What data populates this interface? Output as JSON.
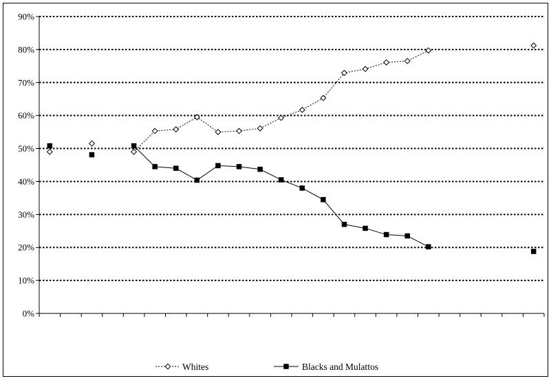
{
  "chart_data": {
    "type": "line",
    "title": "",
    "xlabel": "",
    "ylabel": "",
    "ylim": [
      0,
      90
    ],
    "y_ticks": [
      "0%",
      "10%",
      "20%",
      "30%",
      "40%",
      "50%",
      "60%",
      "70%",
      "80%",
      "90%"
    ],
    "grid": true,
    "legend_position": "bottom",
    "x_slots": 24,
    "series": [
      {
        "name": "Whites",
        "style": "dotted line with open diamond markers",
        "color": "#000000",
        "points": [
          {
            "slot": 0,
            "y": 49.0
          },
          {
            "slot": 2,
            "y": 51.5
          },
          {
            "slot": 4,
            "y": 49.0
          },
          {
            "slot": 5,
            "y": 55.3
          },
          {
            "slot": 6,
            "y": 55.8
          },
          {
            "slot": 7,
            "y": 59.5
          },
          {
            "slot": 8,
            "y": 55.0
          },
          {
            "slot": 9,
            "y": 55.3
          },
          {
            "slot": 10,
            "y": 56.1
          },
          {
            "slot": 11,
            "y": 59.3
          },
          {
            "slot": 12,
            "y": 61.7
          },
          {
            "slot": 13,
            "y": 65.3
          },
          {
            "slot": 14,
            "y": 72.9
          },
          {
            "slot": 15,
            "y": 74.1
          },
          {
            "slot": 16,
            "y": 76.1
          },
          {
            "slot": 17,
            "y": 76.5
          },
          {
            "slot": 18,
            "y": 79.7
          },
          {
            "slot": 23,
            "y": 81.2
          }
        ]
      },
      {
        "name": "Blacks and Mulattos",
        "style": "solid line with filled square markers",
        "color": "#000000",
        "points": [
          {
            "slot": 0,
            "y": 50.8
          },
          {
            "slot": 2,
            "y": 48.1
          },
          {
            "slot": 4,
            "y": 50.8
          },
          {
            "slot": 5,
            "y": 44.5
          },
          {
            "slot": 6,
            "y": 44.0
          },
          {
            "slot": 7,
            "y": 40.4
          },
          {
            "slot": 8,
            "y": 44.8
          },
          {
            "slot": 9,
            "y": 44.5
          },
          {
            "slot": 10,
            "y": 43.7
          },
          {
            "slot": 11,
            "y": 40.5
          },
          {
            "slot": 12,
            "y": 38.0
          },
          {
            "slot": 13,
            "y": 34.5
          },
          {
            "slot": 14,
            "y": 27.0
          },
          {
            "slot": 15,
            "y": 25.8
          },
          {
            "slot": 16,
            "y": 23.9
          },
          {
            "slot": 17,
            "y": 23.5
          },
          {
            "slot": 18,
            "y": 20.2
          },
          {
            "slot": 23,
            "y": 18.8
          }
        ]
      }
    ]
  }
}
